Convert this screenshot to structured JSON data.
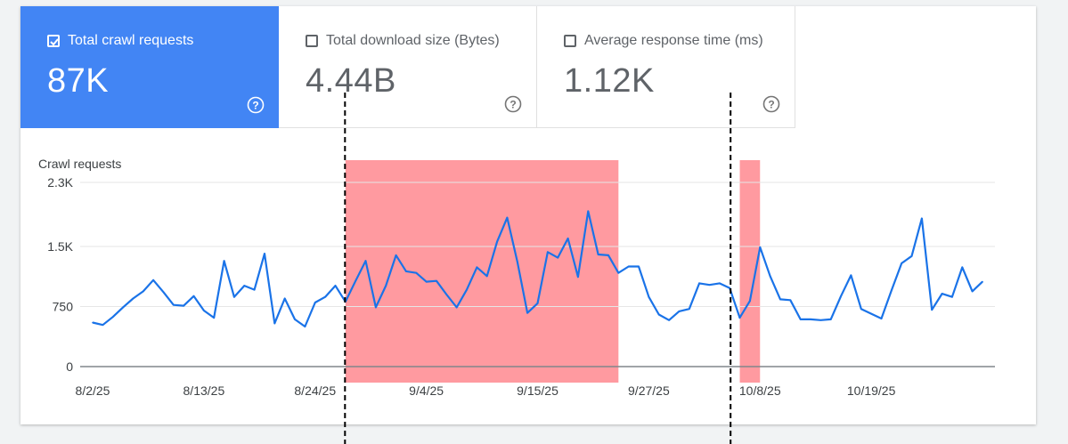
{
  "metrics": [
    {
      "label": "Total crawl requests",
      "value": "87K",
      "checked": true
    },
    {
      "label": "Total download size (Bytes)",
      "value": "4.44B",
      "checked": false
    },
    {
      "label": "Average response time (ms)",
      "value": "1.12K",
      "checked": false
    }
  ],
  "chart_data": {
    "type": "line",
    "ylabel": "Crawl requests",
    "ylim": [
      0,
      2300
    ],
    "y_ticks": [
      0,
      750,
      1500,
      2300
    ],
    "y_tick_labels": [
      "0",
      "750",
      "1.5K",
      "2.3K"
    ],
    "x_tick_labels": [
      "8/2/25",
      "8/13/25",
      "8/24/25",
      "9/4/25",
      "9/15/25",
      "9/27/25",
      "10/8/25",
      "10/19/25"
    ],
    "x_tick_index": [
      0,
      11,
      22,
      33,
      44,
      55,
      66,
      77
    ],
    "series": [
      {
        "color": "#1a73e8",
        "values": [
          550,
          520,
          620,
          740,
          850,
          940,
          1080,
          930,
          770,
          760,
          880,
          700,
          610,
          1320,
          870,
          1010,
          960,
          1410,
          540,
          850,
          590,
          500,
          800,
          870,
          1010,
          810,
          1070,
          1320,
          740,
          1010,
          1390,
          1190,
          1170,
          1060,
          1070,
          900,
          740,
          960,
          1240,
          1130,
          1560,
          1860,
          1310,
          670,
          790,
          1430,
          1360,
          1600,
          1120,
          1940,
          1400,
          1390,
          1170,
          1250,
          1250,
          870,
          650,
          580,
          690,
          720,
          1040,
          1020,
          1040,
          980,
          610,
          820,
          1490,
          1130,
          840,
          830,
          590,
          590,
          580,
          590,
          880,
          1140,
          720,
          660,
          600,
          950,
          1290,
          1380,
          1850,
          710,
          910,
          870,
          1240,
          940,
          1060
        ]
      }
    ],
    "highlights": [
      {
        "start_index": 25,
        "end_index": 52,
        "color": "#ff9aa0"
      },
      {
        "start_index": 64,
        "end_index": 66,
        "color": "#ff9aa0"
      }
    ],
    "markers": [
      {
        "index": 25,
        "style": "dashed"
      },
      {
        "index": 63,
        "style": "dashed"
      }
    ]
  }
}
